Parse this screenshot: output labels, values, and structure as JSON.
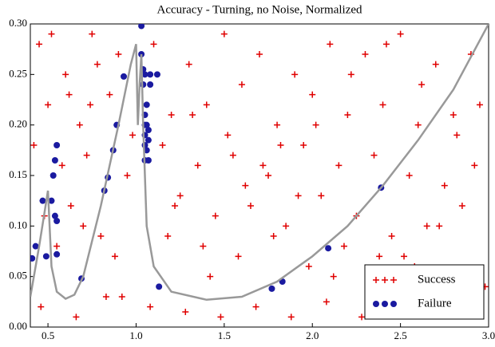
{
  "chart_data": {
    "type": "scatter",
    "title": "Accuracy - Turning, no Noise, Normalized",
    "xlim": [
      0.4,
      3.0
    ],
    "ylim": [
      0,
      0.3
    ],
    "xticks": [
      0.5,
      {
        "value": 1,
        "label": "1.0"
      },
      1.5,
      {
        "value": 2,
        "label": "2.0"
      },
      2.5,
      {
        "value": 3,
        "label": "3.0"
      }
    ],
    "yticks": [
      {
        "value": 0,
        "label": "0.00"
      },
      {
        "value": 0.05,
        "label": "0.05"
      },
      {
        "value": 0.1,
        "label": "0.10"
      },
      {
        "value": 0.15,
        "label": "0.15"
      },
      {
        "value": 0.2,
        "label": "0.20"
      },
      {
        "value": 0.25,
        "label": "0.25"
      },
      {
        "value": 0.3,
        "label": "0.30"
      }
    ],
    "legend": "lower right",
    "series": [
      {
        "name": "Success",
        "color": "#e00000",
        "marker": "plus",
        "x": [
          0.45,
          0.6,
          0.75,
          0.9,
          1.1,
          1.3,
          1.5,
          1.7,
          1.9,
          2.1,
          2.3,
          2.5,
          2.7,
          2.9,
          0.5,
          0.68,
          0.85,
          1.2,
          1.4,
          1.6,
          1.8,
          2.0,
          2.2,
          2.4,
          2.6,
          2.8,
          2.95,
          0.42,
          0.58,
          0.72,
          0.95,
          1.15,
          1.35,
          1.55,
          1.75,
          1.95,
          2.15,
          2.35,
          2.55,
          2.75,
          0.48,
          0.63,
          0.8,
          1.25,
          1.45,
          1.65,
          1.85,
          2.05,
          2.25,
          2.45,
          2.65,
          2.85,
          0.55,
          0.7,
          0.88,
          1.18,
          1.38,
          1.58,
          1.78,
          1.98,
          2.18,
          2.38,
          2.58,
          2.78,
          2.98,
          0.46,
          0.66,
          0.83,
          1.08,
          1.28,
          1.48,
          1.68,
          1.88,
          2.08,
          2.28,
          2.48,
          2.68,
          2.88,
          0.62,
          0.78,
          0.98,
          1.22,
          1.42,
          1.62,
          1.82,
          2.02,
          2.22,
          2.42,
          2.62,
          2.82,
          0.52,
          0.74,
          0.92,
          1.32,
          1.52,
          1.72,
          1.92,
          2.12,
          2.32,
          2.52,
          2.72,
          2.92
        ],
        "values": [
          0.28,
          0.25,
          0.29,
          0.27,
          0.28,
          0.26,
          0.29,
          0.27,
          0.25,
          0.28,
          0.27,
          0.29,
          0.26,
          0.27,
          0.22,
          0.2,
          0.23,
          0.21,
          0.22,
          0.24,
          0.2,
          0.23,
          0.21,
          0.22,
          0.2,
          0.21,
          0.22,
          0.18,
          0.16,
          0.17,
          0.15,
          0.18,
          0.16,
          0.17,
          0.15,
          0.18,
          0.16,
          0.17,
          0.15,
          0.14,
          0.11,
          0.12,
          0.09,
          0.13,
          0.11,
          0.12,
          0.1,
          0.13,
          0.11,
          0.09,
          0.1,
          0.12,
          0.08,
          0.1,
          0.07,
          0.09,
          0.08,
          0.07,
          0.09,
          0.06,
          0.08,
          0.07,
          0.06,
          0.05,
          0.04,
          0.02,
          0.01,
          0.03,
          0.02,
          0.015,
          0.01,
          0.02,
          0.01,
          0.025,
          0.01,
          0.02,
          0.03,
          0.015,
          0.23,
          0.26,
          0.19,
          0.12,
          0.05,
          0.14,
          0.18,
          0.2,
          0.25,
          0.28,
          0.24,
          0.19,
          0.29,
          0.22,
          0.03,
          0.21,
          0.19,
          0.16,
          0.13,
          0.05,
          0.04,
          0.07,
          0.1,
          0.16
        ]
      },
      {
        "name": "Failure",
        "color": "#1a1aa0",
        "marker": "dot",
        "x": [
          0.41,
          0.43,
          0.47,
          0.49,
          0.52,
          0.53,
          0.54,
          0.54,
          0.55,
          0.55,
          0.55,
          0.69,
          0.82,
          0.84,
          0.87,
          0.89,
          0.93,
          1.03,
          1.03,
          1.04,
          1.04,
          1.05,
          1.05,
          1.05,
          1.05,
          1.05,
          1.05,
          1.06,
          1.06,
          1.06,
          1.07,
          1.07,
          1.07,
          1.08,
          1.08,
          1.12,
          1.13,
          1.77,
          1.83,
          2.09,
          2.39
        ],
        "values": [
          0.068,
          0.08,
          0.125,
          0.07,
          0.125,
          0.15,
          0.11,
          0.165,
          0.18,
          0.105,
          0.072,
          0.048,
          0.135,
          0.148,
          0.175,
          0.2,
          0.248,
          0.298,
          0.27,
          0.255,
          0.24,
          0.25,
          0.21,
          0.2,
          0.19,
          0.18,
          0.165,
          0.22,
          0.2,
          0.175,
          0.185,
          0.195,
          0.165,
          0.24,
          0.25,
          0.25,
          0.04,
          0.038,
          0.045,
          0.078,
          0.138
        ]
      }
    ],
    "line": {
      "color": "#999999",
      "x": [
        0.4,
        0.45,
        0.5,
        0.52,
        0.55,
        0.6,
        0.65,
        0.7,
        0.8,
        0.9,
        0.97,
        1.0,
        1.01,
        1.02,
        1.03,
        1.04,
        1.06,
        1.1,
        1.2,
        1.4,
        1.6,
        1.8,
        2.0,
        2.2,
        2.4,
        2.6,
        2.8,
        3.0
      ],
      "values": [
        0.03,
        0.08,
        0.135,
        0.06,
        0.035,
        0.028,
        0.032,
        0.05,
        0.12,
        0.2,
        0.26,
        0.28,
        0.2,
        0.24,
        0.27,
        0.2,
        0.1,
        0.06,
        0.035,
        0.027,
        0.03,
        0.045,
        0.07,
        0.1,
        0.14,
        0.185,
        0.235,
        0.3
      ]
    }
  }
}
